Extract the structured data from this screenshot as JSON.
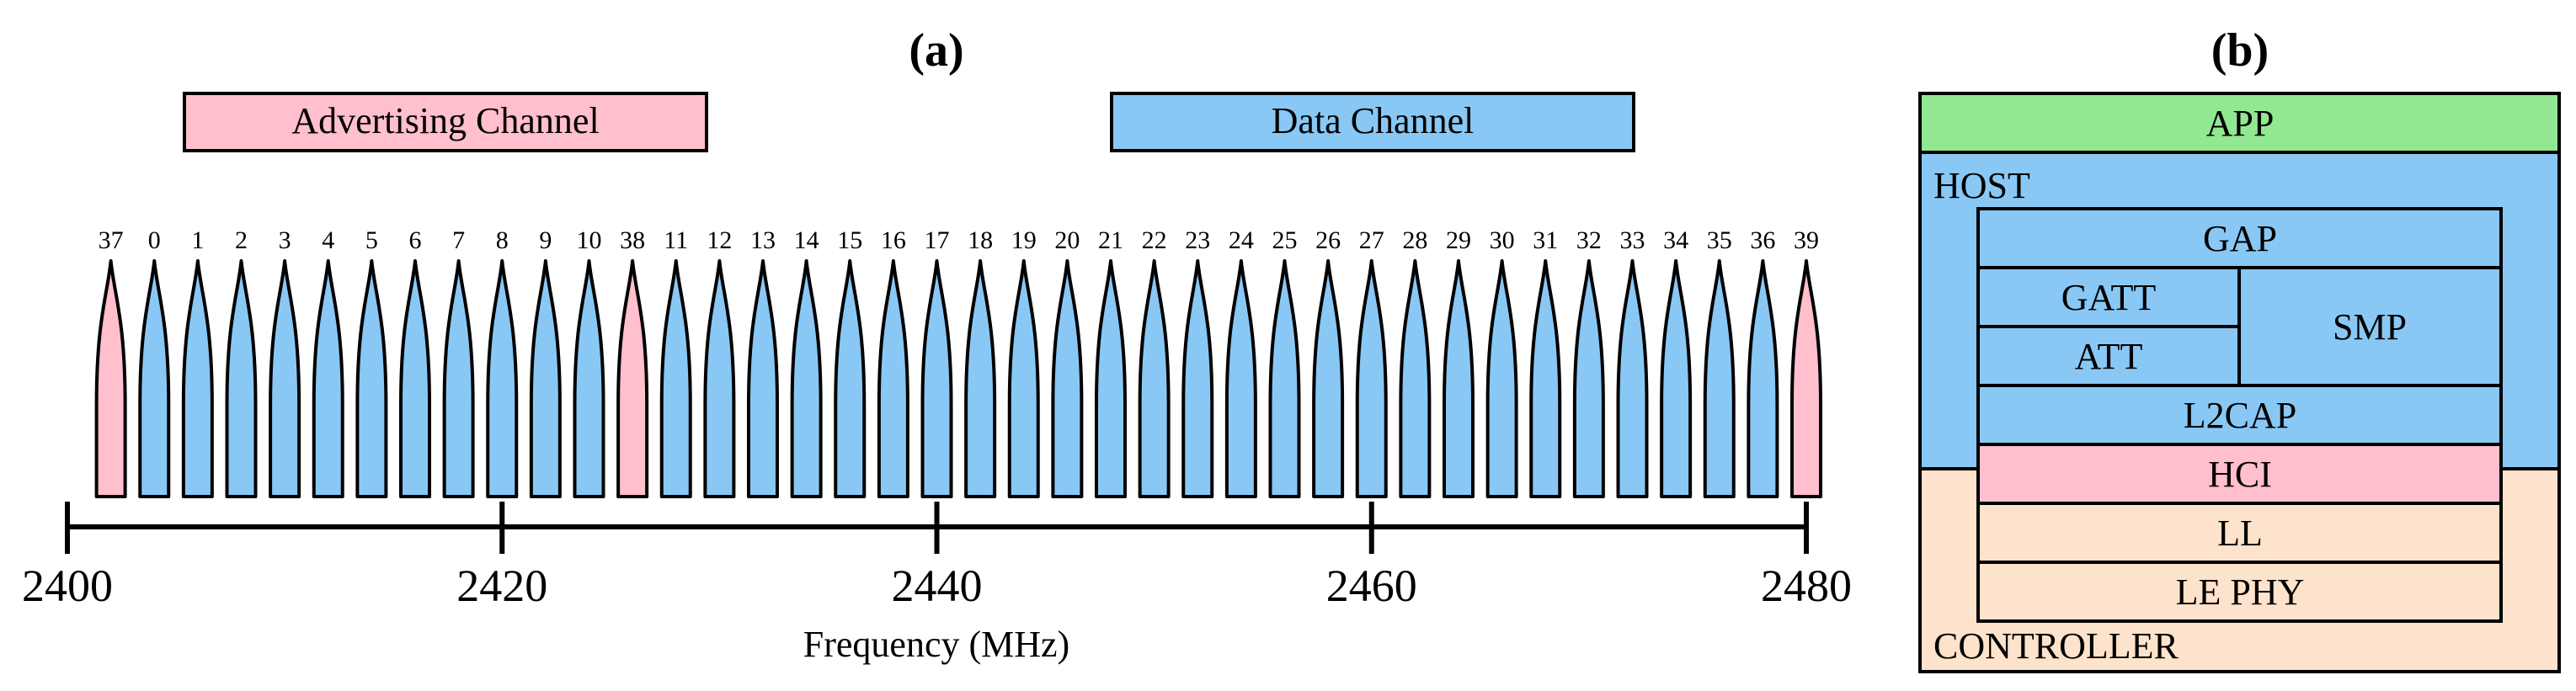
{
  "colors": {
    "advertising": "#ffbfcc",
    "data": "#89c8f5",
    "app": "#91e891",
    "host": "#89c8f5",
    "hci": "#ffbfcc",
    "controller": "#fde3cb",
    "stroke": "#000000"
  },
  "panel_a": {
    "label": "(a)",
    "legend": {
      "advertising": "Advertising Channel",
      "data": "Data Channel"
    },
    "xlabel": "Frequency (MHz)",
    "ticks": [
      "2400",
      "2420",
      "2440",
      "2460",
      "2480"
    ]
  },
  "panel_b": {
    "label": "(b)",
    "app": "APP",
    "host": "HOST",
    "gap": "GAP",
    "gatt": "GATT",
    "att": "ATT",
    "smp": "SMP",
    "l2cap": "L2CAP",
    "hci": "HCI",
    "ll": "LL",
    "le_phy": "LE PHY",
    "controller": "CONTROLLER"
  },
  "chart_data": {
    "type": "bar",
    "title": "",
    "xlabel": "Frequency (MHz)",
    "xlim": [
      2400,
      2480
    ],
    "xticks": [
      2400,
      2420,
      2440,
      2460,
      2480
    ],
    "series": [
      {
        "name": "Advertising Channel",
        "channels": [
          {
            "index": "37",
            "freq": 2402
          },
          {
            "index": "38",
            "freq": 2426
          },
          {
            "index": "39",
            "freq": 2480
          }
        ]
      },
      {
        "name": "Data Channel",
        "channels": [
          {
            "index": "0",
            "freq": 2404
          },
          {
            "index": "1",
            "freq": 2406
          },
          {
            "index": "2",
            "freq": 2408
          },
          {
            "index": "3",
            "freq": 2410
          },
          {
            "index": "4",
            "freq": 2412
          },
          {
            "index": "5",
            "freq": 2414
          },
          {
            "index": "6",
            "freq": 2416
          },
          {
            "index": "7",
            "freq": 2418
          },
          {
            "index": "8",
            "freq": 2420
          },
          {
            "index": "9",
            "freq": 2422
          },
          {
            "index": "10",
            "freq": 2424
          },
          {
            "index": "11",
            "freq": 2428
          },
          {
            "index": "12",
            "freq": 2430
          },
          {
            "index": "13",
            "freq": 2432
          },
          {
            "index": "14",
            "freq": 2434
          },
          {
            "index": "15",
            "freq": 2436
          },
          {
            "index": "16",
            "freq": 2438
          },
          {
            "index": "17",
            "freq": 2440
          },
          {
            "index": "18",
            "freq": 2442
          },
          {
            "index": "19",
            "freq": 2444
          },
          {
            "index": "20",
            "freq": 2446
          },
          {
            "index": "21",
            "freq": 2448
          },
          {
            "index": "22",
            "freq": 2450
          },
          {
            "index": "23",
            "freq": 2452
          },
          {
            "index": "24",
            "freq": 2454
          },
          {
            "index": "25",
            "freq": 2456
          },
          {
            "index": "26",
            "freq": 2458
          },
          {
            "index": "27",
            "freq": 2460
          },
          {
            "index": "28",
            "freq": 2462
          },
          {
            "index": "29",
            "freq": 2464
          },
          {
            "index": "30",
            "freq": 2466
          },
          {
            "index": "31",
            "freq": 2468
          },
          {
            "index": "32",
            "freq": 2470
          },
          {
            "index": "33",
            "freq": 2472
          },
          {
            "index": "34",
            "freq": 2474
          },
          {
            "index": "35",
            "freq": 2476
          },
          {
            "index": "36",
            "freq": 2478
          }
        ]
      }
    ]
  }
}
